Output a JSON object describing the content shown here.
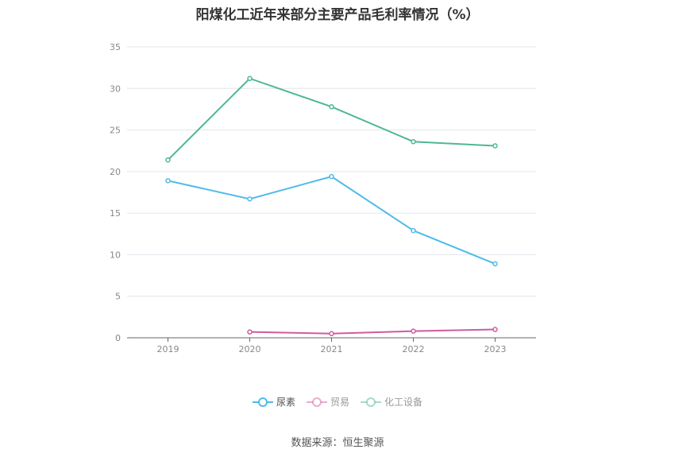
{
  "chart_data": {
    "type": "line",
    "title": "阳煤化工近年来部分主要产品毛利率情况（%）",
    "categories": [
      "2019",
      "2020",
      "2021",
      "2022",
      "2023"
    ],
    "ylim": [
      0,
      35
    ],
    "yticks": [
      0,
      5,
      10,
      15,
      20,
      25,
      30,
      35
    ],
    "grid": true,
    "legend_position": "bottom",
    "series": [
      {
        "name": "尿素",
        "color": "#4fbbeb",
        "values": [
          18.9,
          16.7,
          19.4,
          12.9,
          8.9
        ],
        "active": true
      },
      {
        "name": "贸易",
        "color": "#cd5ca0",
        "values": [
          null,
          0.7,
          0.5,
          0.8,
          1.0
        ],
        "active": false
      },
      {
        "name": "化工设备",
        "color": "#4db894",
        "values": [
          21.4,
          31.2,
          27.8,
          23.6,
          23.1
        ],
        "active": false
      }
    ],
    "source": "数据来源：恒生聚源"
  }
}
